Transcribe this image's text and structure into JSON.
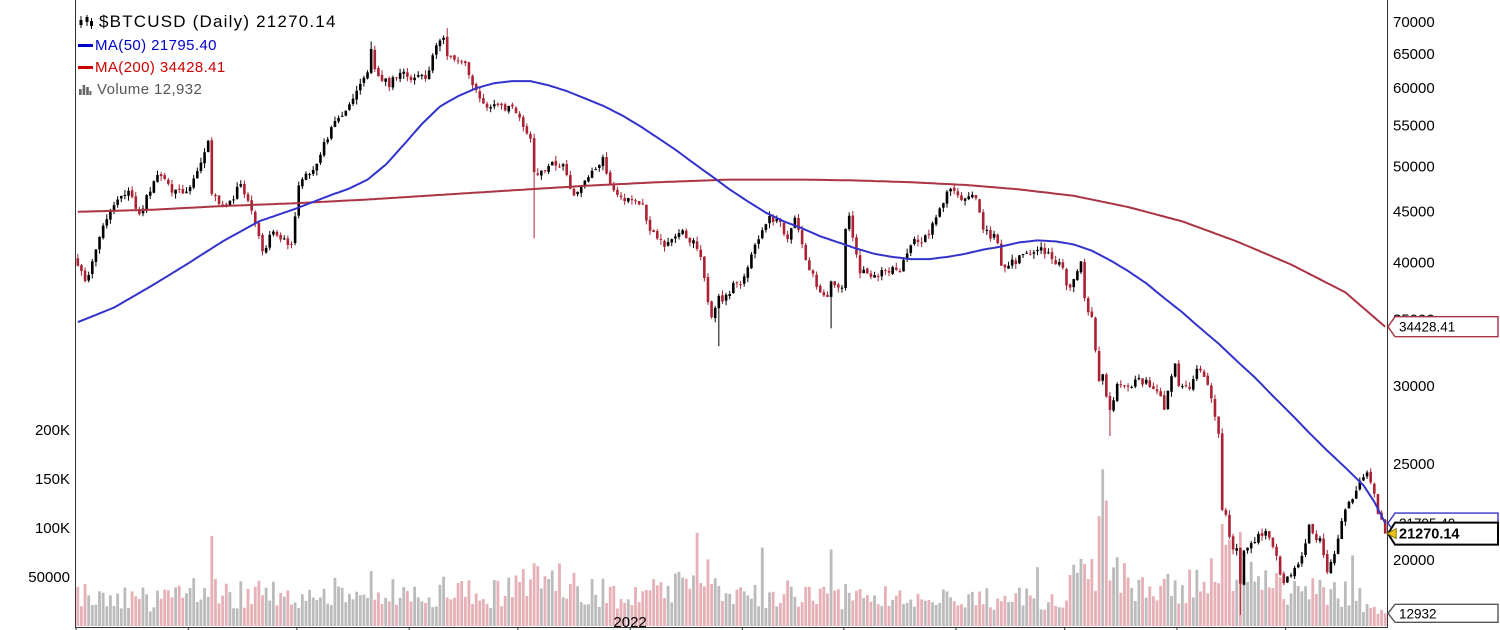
{
  "chart": {
    "title": "$BTCUSD (Daily) 21270.14",
    "title_color": "#000000",
    "legend": {
      "ma50_label": "MA(50) 21795.40",
      "ma50_color": "#0000CC",
      "ma200_label": "MA(200) 34428.41",
      "ma200_color": "#CC0000",
      "volume_label": "Volume 12,932",
      "volume_color": "#555555"
    }
  },
  "chart_data": {
    "type": "candlestick",
    "symbol": "$BTCUSD",
    "timeframe": "Daily",
    "last_price": 21270.14,
    "ma50_value": 21795.4,
    "ma200_value": 34428.41,
    "last_volume": 12932,
    "bars": 362,
    "price_scale": "log",
    "grid": "off",
    "y_axis_price_ticks": [
      {
        "label": "70000",
        "value": 70000
      },
      {
        "label": "65000",
        "value": 65000
      },
      {
        "label": "60000",
        "value": 60000
      },
      {
        "label": "55000",
        "value": 55000
      },
      {
        "label": "50000",
        "value": 50000
      },
      {
        "label": "45000",
        "value": 45000
      },
      {
        "label": "40000",
        "value": 40000
      },
      {
        "label": "35000",
        "value": 35000
      },
      {
        "label": "30000",
        "value": 30000
      },
      {
        "label": "25000",
        "value": 25000
      },
      {
        "label": "20000",
        "value": 20000
      }
    ],
    "y_axis_volume_ticks": [
      {
        "label": "200K",
        "value": 200000
      },
      {
        "label": "150K",
        "value": 150000
      },
      {
        "label": "100K",
        "value": 100000
      },
      {
        "label": "50000",
        "value": 50000
      }
    ],
    "x_axis": {
      "year_label": "2022",
      "year_bar": 153,
      "month_bars": [
        0,
        31,
        61,
        92,
        122,
        153,
        184,
        212,
        243,
        273,
        304,
        334
      ]
    },
    "axis_markers": [
      {
        "label": "34428.41",
        "value": 34428.41,
        "axis": "price",
        "color": "#AA3344",
        "bold": false
      },
      {
        "label": "21795.40",
        "value": 21795.4,
        "axis": "price",
        "color": "#3333CC",
        "bold": false
      },
      {
        "label": "21270.14",
        "value": 21270.14,
        "axis": "price",
        "color": "#000000",
        "bold": true
      },
      {
        "label": "12932",
        "value": 12932,
        "axis": "volume",
        "color": "#555555",
        "bold": false
      }
    ],
    "price_path_anchors": [
      [
        0,
        39900
      ],
      [
        2,
        38200
      ],
      [
        4,
        39800
      ],
      [
        7,
        43800
      ],
      [
        10,
        45600
      ],
      [
        14,
        47000
      ],
      [
        17,
        44700
      ],
      [
        22,
        49300
      ],
      [
        26,
        47100
      ],
      [
        30,
        47100
      ],
      [
        36,
        52700
      ],
      [
        37,
        46800
      ],
      [
        41,
        45200
      ],
      [
        45,
        48100
      ],
      [
        50,
        42900
      ],
      [
        51,
        40700
      ],
      [
        54,
        43200
      ],
      [
        59,
        41500
      ],
      [
        61,
        48200
      ],
      [
        65,
        49300
      ],
      [
        70,
        54700
      ],
      [
        75,
        57400
      ],
      [
        80,
        62000
      ],
      [
        81,
        65900
      ],
      [
        82,
        62200
      ],
      [
        86,
        60700
      ],
      [
        89,
        62200
      ],
      [
        92,
        61300
      ],
      [
        96,
        61500
      ],
      [
        100,
        67500
      ],
      [
        101,
        66900
      ],
      [
        102,
        64900
      ],
      [
        105,
        64400
      ],
      [
        107,
        63600
      ],
      [
        109,
        60100
      ],
      [
        113,
        57600
      ],
      [
        117,
        57200
      ],
      [
        121,
        57000
      ],
      [
        125,
        53600
      ],
      [
        126,
        49200
      ],
      [
        130,
        50100
      ],
      [
        134,
        50100
      ],
      [
        137,
        46700
      ],
      [
        141,
        49000
      ],
      [
        145,
        50700
      ],
      [
        148,
        47100
      ],
      [
        152,
        46200
      ],
      [
        156,
        45900
      ],
      [
        158,
        43100
      ],
      [
        162,
        41800
      ],
      [
        166,
        43100
      ],
      [
        170,
        42000
      ],
      [
        172,
        40700
      ],
      [
        174,
        36400
      ],
      [
        175,
        35100
      ],
      [
        177,
        36700
      ],
      [
        179,
        36900
      ],
      [
        181,
        37900
      ],
      [
        184,
        38500
      ],
      [
        187,
        41500
      ],
      [
        190,
        44000
      ],
      [
        193,
        44500
      ],
      [
        196,
        42200
      ],
      [
        198,
        44500
      ],
      [
        201,
        40500
      ],
      [
        205,
        37000
      ],
      [
        207,
        37200
      ],
      [
        208,
        38300
      ],
      [
        211,
        37800
      ],
      [
        212,
        43200
      ],
      [
        213,
        44400
      ],
      [
        216,
        39100
      ],
      [
        220,
        38700
      ],
      [
        223,
        39400
      ],
      [
        227,
        39300
      ],
      [
        230,
        41800
      ],
      [
        234,
        42400
      ],
      [
        237,
        44300
      ],
      [
        240,
        47100
      ],
      [
        242,
        47200
      ],
      [
        245,
        46300
      ],
      [
        248,
        46600
      ],
      [
        250,
        43200
      ],
      [
        254,
        42100
      ],
      [
        255,
        39500
      ],
      [
        258,
        40000
      ],
      [
        262,
        40800
      ],
      [
        265,
        41500
      ],
      [
        269,
        40400
      ],
      [
        272,
        39700
      ],
      [
        273,
        37600
      ],
      [
        275,
        38500
      ],
      [
        277,
        39900
      ],
      [
        278,
        36500
      ],
      [
        280,
        35300
      ],
      [
        282,
        30100
      ],
      [
        283,
        31000
      ],
      [
        284,
        29100
      ],
      [
        285,
        28400
      ],
      [
        287,
        30100
      ],
      [
        289,
        29900
      ],
      [
        292,
        30300
      ],
      [
        295,
        30300
      ],
      [
        298,
        29600
      ],
      [
        300,
        28600
      ],
      [
        303,
        31700
      ],
      [
        304,
        29800
      ],
      [
        307,
        29900
      ],
      [
        309,
        31400
      ],
      [
        312,
        30100
      ],
      [
        313,
        29100
      ],
      [
        315,
        26600
      ],
      [
        316,
        22500
      ],
      [
        317,
        22100
      ],
      [
        319,
        20400
      ],
      [
        320,
        20400
      ],
      [
        321,
        19000
      ],
      [
        322,
        20600
      ],
      [
        323,
        20700
      ],
      [
        326,
        21100
      ],
      [
        328,
        21500
      ],
      [
        330,
        20700
      ],
      [
        333,
        18900
      ],
      [
        335,
        19300
      ],
      [
        338,
        20200
      ],
      [
        340,
        21600
      ],
      [
        343,
        20900
      ],
      [
        345,
        19300
      ],
      [
        347,
        20300
      ],
      [
        350,
        22500
      ],
      [
        352,
        23200
      ],
      [
        354,
        24000
      ],
      [
        356,
        24400
      ],
      [
        357,
        23900
      ],
      [
        358,
        23200
      ],
      [
        359,
        22400
      ],
      [
        360,
        21800
      ],
      [
        361,
        21270.14
      ]
    ],
    "wick_events": {
      "81": {
        "high": 66900
      },
      "102": {
        "high": 69000
      },
      "126": {
        "low": 42300
      },
      "177": {
        "low": 32900
      },
      "208": {
        "low": 34300
      },
      "285": {
        "low": 26700
      },
      "321": {
        "low": 17600
      }
    },
    "ma50_points": [
      [
        0,
        34800
      ],
      [
        10,
        36000
      ],
      [
        20,
        37800
      ],
      [
        30,
        39800
      ],
      [
        40,
        42000
      ],
      [
        50,
        44000
      ],
      [
        60,
        45300
      ],
      [
        70,
        46800
      ],
      [
        75,
        47500
      ],
      [
        80,
        48500
      ],
      [
        85,
        50200
      ],
      [
        90,
        52600
      ],
      [
        95,
        55200
      ],
      [
        100,
        57500
      ],
      [
        105,
        58900
      ],
      [
        110,
        60000
      ],
      [
        115,
        60700
      ],
      [
        120,
        61000
      ],
      [
        125,
        61000
      ],
      [
        130,
        60400
      ],
      [
        135,
        59600
      ],
      [
        140,
        58600
      ],
      [
        145,
        57600
      ],
      [
        150,
        56400
      ],
      [
        155,
        55000
      ],
      [
        160,
        53500
      ],
      [
        165,
        52000
      ],
      [
        170,
        50400
      ],
      [
        175,
        48900
      ],
      [
        180,
        47400
      ],
      [
        185,
        46100
      ],
      [
        190,
        44900
      ],
      [
        195,
        44000
      ],
      [
        200,
        43300
      ],
      [
        205,
        42500
      ],
      [
        210,
        41900
      ],
      [
        215,
        41300
      ],
      [
        220,
        40800
      ],
      [
        225,
        40500
      ],
      [
        230,
        40300
      ],
      [
        235,
        40300
      ],
      [
        240,
        40500
      ],
      [
        245,
        40800
      ],
      [
        250,
        41200
      ],
      [
        255,
        41500
      ],
      [
        260,
        41900
      ],
      [
        265,
        42100
      ],
      [
        270,
        42000
      ],
      [
        275,
        41700
      ],
      [
        280,
        41100
      ],
      [
        285,
        40200
      ],
      [
        290,
        39200
      ],
      [
        295,
        38100
      ],
      [
        300,
        36800
      ],
      [
        305,
        35600
      ],
      [
        310,
        34300
      ],
      [
        315,
        33100
      ],
      [
        320,
        31800
      ],
      [
        325,
        30600
      ],
      [
        330,
        29300
      ],
      [
        335,
        28100
      ],
      [
        340,
        26900
      ],
      [
        345,
        25800
      ],
      [
        350,
        24800
      ],
      [
        355,
        23800
      ],
      [
        358,
        22900
      ],
      [
        361,
        21795.4
      ]
    ],
    "ma200_points": [
      [
        0,
        45000
      ],
      [
        20,
        45200
      ],
      [
        40,
        45600
      ],
      [
        60,
        45900
      ],
      [
        80,
        46300
      ],
      [
        100,
        46800
      ],
      [
        120,
        47300
      ],
      [
        140,
        47800
      ],
      [
        160,
        48200
      ],
      [
        180,
        48500
      ],
      [
        200,
        48500
      ],
      [
        215,
        48400
      ],
      [
        230,
        48200
      ],
      [
        245,
        47900
      ],
      [
        260,
        47400
      ],
      [
        275,
        46700
      ],
      [
        290,
        45500
      ],
      [
        305,
        44000
      ],
      [
        320,
        42000
      ],
      [
        335,
        39800
      ],
      [
        350,
        37300
      ],
      [
        361,
        34428.41
      ]
    ],
    "volume_anchors": [
      [
        0,
        30000
      ],
      [
        25,
        26000
      ],
      [
        36,
        40000
      ],
      [
        40,
        30000
      ],
      [
        60,
        32000
      ],
      [
        90,
        34000
      ],
      [
        120,
        33000
      ],
      [
        126,
        48000
      ],
      [
        150,
        30000
      ],
      [
        170,
        40000
      ],
      [
        184,
        32000
      ],
      [
        210,
        30000
      ],
      [
        240,
        25000
      ],
      [
        270,
        28000
      ],
      [
        281,
        60000
      ],
      [
        286,
        60000
      ],
      [
        290,
        42000
      ],
      [
        305,
        38000
      ],
      [
        315,
        70000
      ],
      [
        322,
        55000
      ],
      [
        334,
        38000
      ],
      [
        350,
        34000
      ],
      [
        361,
        13000
      ]
    ],
    "volume_spikes": {
      "37": 92000,
      "81": 56000,
      "126": 64000,
      "171": 95000,
      "174": 68000,
      "189": 80000,
      "208": 78000,
      "265": 60000,
      "282": 112000,
      "283": 160000,
      "284": 128000,
      "316": 104000,
      "318": 88000,
      "321": 96000,
      "352": 72000,
      "361": 12932
    },
    "colors": {
      "up": "#000000",
      "down": "#AA2233",
      "ma50": "#3333CC",
      "ma200": "#AA3344",
      "vol_up": "#BBBBBB",
      "vol_down": "#E6B0B6",
      "axis_text": "#000000",
      "border": "#333333",
      "last_tag": "#EDC51E",
      "last_tag_edge": "#8A7500"
    }
  }
}
